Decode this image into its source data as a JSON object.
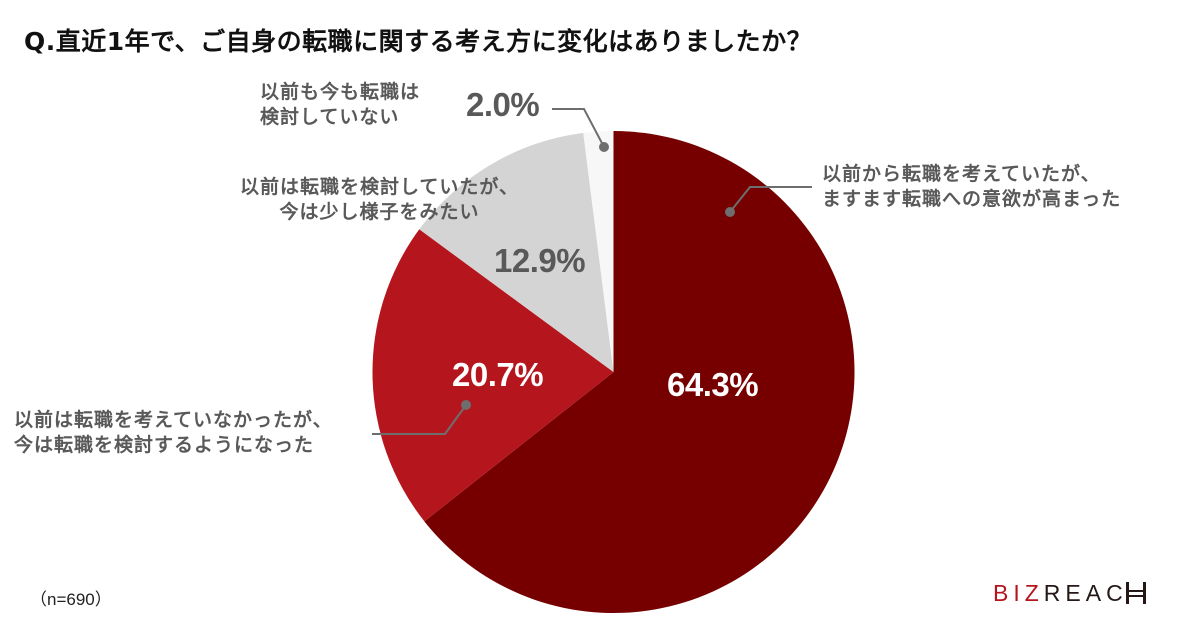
{
  "title": "Q.直近1年で、ご自身の転職に関する考え方に変化はありましたか？",
  "sample_size": "（n=690）",
  "logo": {
    "biz": "BIZ",
    "reach": "REAC"
  },
  "colors": {
    "series0": "#760000",
    "series1": "#b5161e",
    "series2": "#d4d4d4",
    "series3": "#f7f7f7",
    "label": "#595959",
    "leader": "#6e6e6e"
  },
  "labels": [
    {
      "line1": "以前から転職を考えていたが、",
      "line2": "ますます転職への意欲が高まった",
      "pct": "64.3%"
    },
    {
      "line1": "以前は転職を考えていなかったが、",
      "line2": "今は転職を検討するようになった",
      "pct": "20.7%"
    },
    {
      "line1": "以前は転職を検討していたが、",
      "line2": "今は少し様子をみたい",
      "pct": "12.9%"
    },
    {
      "line1": "以前も今も転職は",
      "line2": "検討していない",
      "pct": "2.0%"
    }
  ],
  "chart_data": {
    "type": "pie",
    "title": "Q.直近1年で、ご自身の転職に関する考え方に変化はありましたか？",
    "categories": [
      "以前から転職を考えていたが、ますます転職への意欲が高まった",
      "以前は転職を考えていなかったが、今は転職を検討するようになった",
      "以前は転職を検討していたが、今は少し様子をみたい",
      "以前も今も転職は検討していない"
    ],
    "values": [
      64.3,
      20.7,
      12.9,
      2.0
    ],
    "unit": "%",
    "start_angle": "12 o'clock, clockwise",
    "colors": [
      "#760000",
      "#b5161e",
      "#d4d4d4",
      "#f7f7f7"
    ],
    "note": "（n=690）",
    "legend": "none (callout labels)"
  }
}
